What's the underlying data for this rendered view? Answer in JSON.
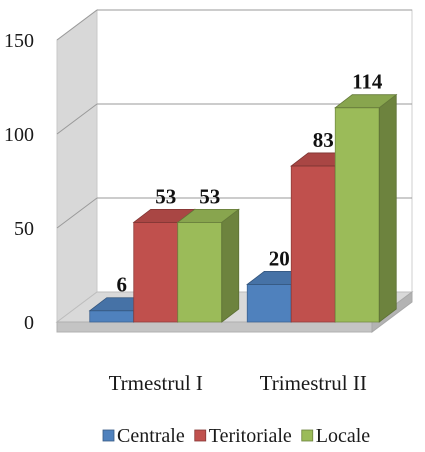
{
  "chart_data": {
    "type": "bar",
    "style": "3d-clustered-column",
    "categories": [
      "Trmestrul I",
      "Trimestrul II"
    ],
    "series": [
      {
        "name": "Centrale",
        "values": [
          6,
          20
        ],
        "color": "#4f81bd"
      },
      {
        "name": "Teritoriale",
        "values": [
          53,
          83
        ],
        "color": "#c0504d"
      },
      {
        "name": "Locale",
        "values": [
          53,
          114
        ],
        "color": "#9bbb59"
      }
    ],
    "y_ticks": [
      "0",
      "50",
      "100",
      "150"
    ],
    "ylim": [
      0,
      150
    ],
    "grid": true,
    "data_labels": true,
    "legend_position": "bottom"
  }
}
